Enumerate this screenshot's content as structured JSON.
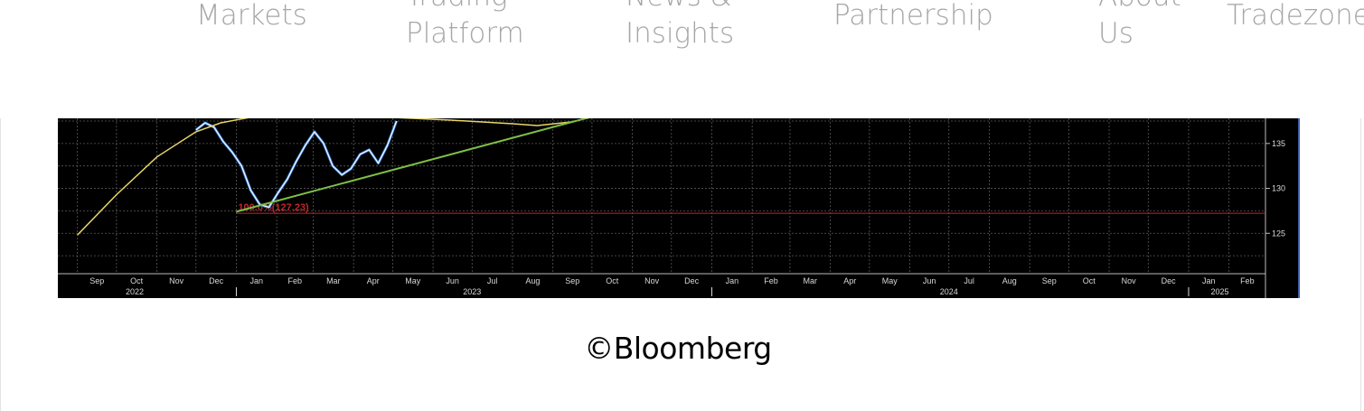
{
  "nav": {
    "items": [
      {
        "lines": [
          "Markets"
        ]
      },
      {
        "lines": [
          "Trading",
          "Platform"
        ]
      },
      {
        "lines": [
          "News &",
          "Insights"
        ]
      },
      {
        "lines": [
          "Partnership"
        ]
      },
      {
        "lines": [
          "About",
          "Us"
        ]
      },
      {
        "lines": [
          "Tradezone"
        ]
      }
    ]
  },
  "chart_data": {
    "type": "line",
    "title": "",
    "xlabel": "",
    "ylabel": "",
    "x_months": [
      "Sep",
      "Oct",
      "Nov",
      "Dec",
      "Jan",
      "Feb",
      "Mar",
      "Apr",
      "May",
      "Jun",
      "Jul",
      "Aug",
      "Sep",
      "Oct",
      "Nov",
      "Dec",
      "Jan",
      "Feb",
      "Mar",
      "Apr",
      "May",
      "Jun",
      "Jul",
      "Aug",
      "Sep",
      "Oct",
      "Nov",
      "Dec",
      "Jan",
      "Feb"
    ],
    "x_years": [
      "2022",
      "2023",
      "2024",
      "2025"
    ],
    "y_ticks": [
      125,
      130,
      135
    ],
    "ylim": [
      120.5,
      137.8
    ],
    "grid": true,
    "annotation": {
      "label": "100.0%(127.23)",
      "value": 127.23,
      "color": "#c0282a"
    },
    "series": [
      {
        "kind": "price",
        "color": "#ffffff",
        "x": [
          "2022-12-01",
          "2022-12-08",
          "2022-12-15",
          "2022-12-22",
          "2022-12-29",
          "2023-01-05",
          "2023-01-12",
          "2023-01-19",
          "2023-01-26",
          "2023-02-02",
          "2023-02-09",
          "2023-02-16",
          "2023-02-23",
          "2023-03-02",
          "2023-03-09",
          "2023-03-16",
          "2023-03-23",
          "2023-03-30",
          "2023-04-06",
          "2023-04-13",
          "2023-04-20",
          "2023-04-27",
          "2023-05-04"
        ],
        "y": [
          136.5,
          137.3,
          136.8,
          135.2,
          134.0,
          132.5,
          129.8,
          128.2,
          127.9,
          129.5,
          131.0,
          133.0,
          134.8,
          136.3,
          135.0,
          132.5,
          131.5,
          132.2,
          133.8,
          134.3,
          132.8,
          134.8,
          137.5
        ]
      },
      {
        "kind": "moving-average",
        "color": "#e9d56a",
        "x": [
          "2022-09-01",
          "2022-10-01",
          "2022-11-01",
          "2022-12-01",
          "2022-12-20",
          "2023-01-15",
          "2023-03-01",
          "2023-05-01",
          "2023-06-15",
          "2023-08-01",
          "2023-08-20",
          "2023-09-15",
          "2023-10-15"
        ],
        "y": [
          124.8,
          129.3,
          133.5,
          136.3,
          137.3,
          138.0,
          138.1,
          137.9,
          137.6,
          137.2,
          137.0,
          137.4,
          138.4
        ]
      },
      {
        "kind": "trendline",
        "color": "#7dbe45",
        "x": [
          "2023-01-01",
          "2023-10-04"
        ],
        "y": [
          127.4,
          138.1
        ]
      }
    ]
  },
  "caption": "©Bloomberg",
  "colors": {
    "nav_text": "#a6a6a6",
    "chart_bg": "#000000",
    "grid": "#5a5a5a"
  }
}
